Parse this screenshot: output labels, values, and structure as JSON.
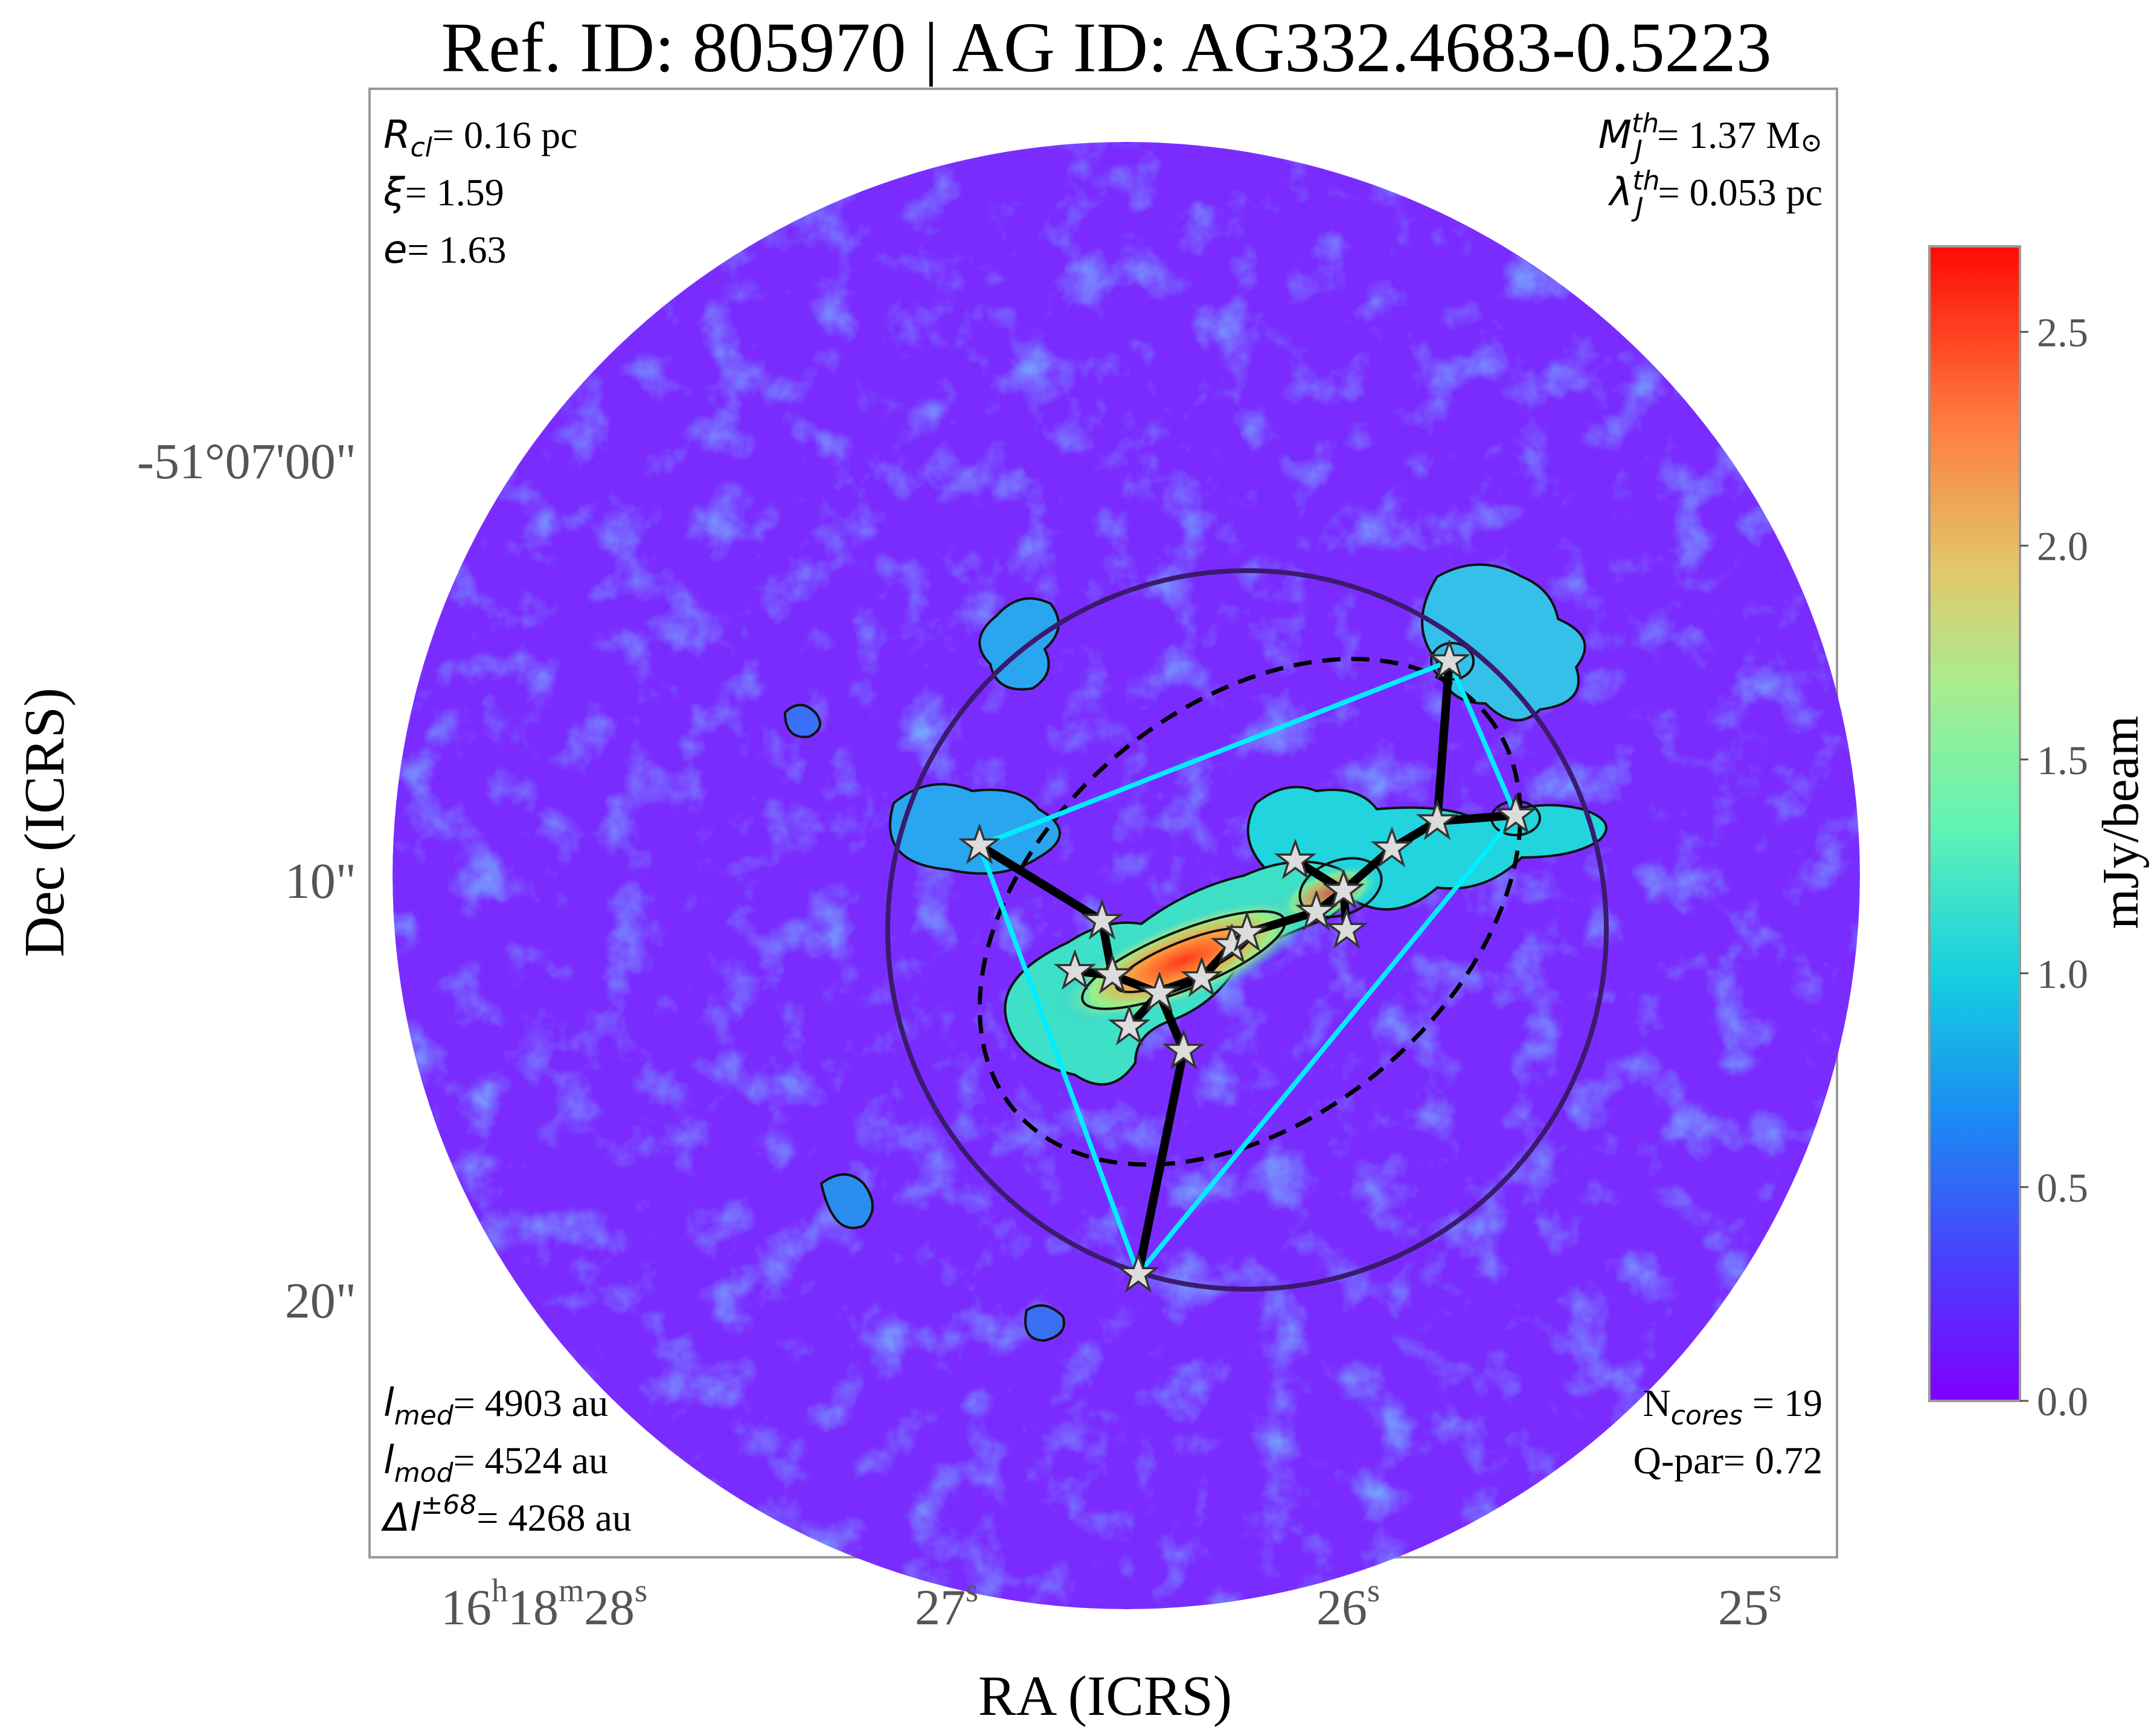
{
  "title": "Ref. ID: 805970 | AG ID: AG332.4683-0.5223",
  "axes": {
    "xlabel": "RA (ICRS)",
    "ylabel": "Dec (ICRS)",
    "x_ticks": [
      {
        "h": "16",
        "m": "18",
        "s": "28"
      },
      {
        "s": "27"
      },
      {
        "s": "26"
      },
      {
        "s": "25"
      }
    ],
    "y_ticks": [
      "-51°07'00\"",
      "10\"",
      "20\""
    ]
  },
  "colorbar": {
    "label": "mJy/beam",
    "ticks": [
      "0.0",
      "0.5",
      "1.0",
      "1.5",
      "2.0",
      "2.5"
    ],
    "min": 0.0,
    "max": 2.7,
    "colors": [
      "#8000ff",
      "#3a5cfb",
      "#00b4eb",
      "#3ef0c9",
      "#85f7a5",
      "#c6e078",
      "#fdb254",
      "#ff6a36",
      "#ff0000"
    ]
  },
  "annotations": {
    "rcl": {
      "sym": "R",
      "sub": "cl",
      "text": "= 0.16 pc"
    },
    "xi": {
      "sym": "ξ",
      "text": "= 1.59"
    },
    "e": {
      "sym": "e",
      "text": "= 1.63"
    },
    "mj": {
      "sym": "M",
      "sup": "th",
      "sub": "J",
      "text": "= 1.37 M",
      "sun": "⊙"
    },
    "lj": {
      "sym": "λ",
      "sup": "th",
      "sub": "J",
      "text": "= 0.053 pc"
    },
    "lmed": {
      "sym": "l",
      "sub": "med",
      "text": "= 4903 au"
    },
    "lmod": {
      "sym": "l",
      "sub": "mod",
      "text": "= 4524 au"
    },
    "dl": {
      "sym": "Δl",
      "sup": "±68",
      "text": "= 4268 au"
    },
    "ncores": {
      "sym": "N",
      "sub": "cores",
      "text": " = 19"
    },
    "qpar": {
      "text": "Q-par= 0.72"
    }
  },
  "chart_data": {
    "type": "image-map",
    "image": "dust continuum map with contours, core markers (stars), minimum spanning tree (black) and convex hull (cyan)",
    "cores_count": 19,
    "colorbar_range_mjy_per_beam": [
      0.0,
      2.7
    ],
    "colors": {
      "mst": "#000000",
      "hull": "#00eeff",
      "clump_circle": "#3b1a6e",
      "clump_ellipse": "#000000",
      "background": "#7a2cff"
    }
  }
}
